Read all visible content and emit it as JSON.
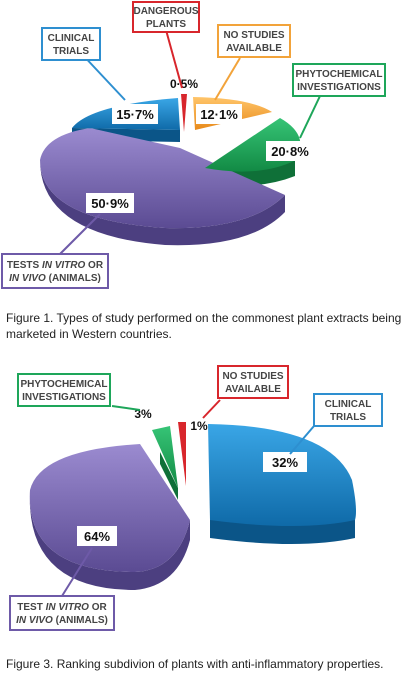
{
  "colors": {
    "clinical": "#1a86c8",
    "dangerous": "#d8262c",
    "nostudies": "#f2a33a",
    "phyto": "#1ea65a",
    "tests": "#7c6bb0",
    "callout_clinical": "#2e8fd0",
    "callout_dangerous": "#d8262c",
    "callout_nostudies": "#f2a33a",
    "callout_phyto": "#1ea65a",
    "callout_tests": "#6e5aa8"
  },
  "captions": {
    "figure1": "Figure 1.   Types of study performed on the commonest plant extracts being marketed in Western countries.",
    "figure3": "Figure 3.   Ranking subdivion of plants with anti-inflammatory properties."
  },
  "chart_data": [
    {
      "type": "pie",
      "title": "",
      "slices": [
        {
          "name": "DANGEROUS PLANTS",
          "value": 0.5,
          "label": "0·5%",
          "color_key": "dangerous"
        },
        {
          "name": "NO STUDIES AVAILABLE",
          "value": 12.1,
          "label": "12·1%",
          "color_key": "nostudies"
        },
        {
          "name": "PHYTOCHEMICAL INVESTIGATIONS",
          "value": 20.8,
          "label": "20·8%",
          "color_key": "phyto"
        },
        {
          "name": "TESTS IN VITRO OR IN VIVO (ANIMALS)",
          "value": 50.9,
          "label": "50·9%",
          "color_key": "tests"
        },
        {
          "name": "CLINICAL TRIALS",
          "value": 15.7,
          "label": "15·7%",
          "color_key": "clinical"
        }
      ],
      "callouts": {
        "dangerous": [
          "DANGEROUS",
          "PLANTS"
        ],
        "clinical": [
          "CLINICAL",
          "TRIALS"
        ],
        "nostudies": [
          "NO STUDIES",
          "AVAILABLE"
        ],
        "phyto": [
          "PHYTOCHEMICAL",
          "INVESTIGATIONS"
        ],
        "tests_line1": [
          "TESTS ",
          "IN VITRO",
          " OR"
        ],
        "tests_line2": [
          "IN VIVO",
          " (ANIMALS)"
        ]
      }
    },
    {
      "type": "pie",
      "title": "",
      "slices": [
        {
          "name": "NO STUDIES AVAILABLE",
          "value": 1,
          "label": "1%",
          "color_key": "dangerous"
        },
        {
          "name": "CLINICAL TRIALS",
          "value": 32,
          "label": "32%",
          "color_key": "clinical"
        },
        {
          "name": "TEST IN VITRO OR IN VIVO (ANIMALS)",
          "value": 64,
          "label": "64%",
          "color_key": "tests"
        },
        {
          "name": "PHYTOCHEMICAL INVESTIGATIONS",
          "value": 3,
          "label": "3%",
          "color_key": "phyto"
        }
      ],
      "callouts": {
        "phyto": [
          "PHYTOCHEMICAL",
          "INVESTIGATIONS"
        ],
        "nostudies": [
          "NO STUDIES",
          "AVAILABLE"
        ],
        "clinical": [
          "CLINICAL",
          "TRIALS"
        ],
        "tests_line1": [
          "TEST ",
          "IN VITRO",
          " OR"
        ],
        "tests_line2": [
          "IN VIVO",
          " (ANIMALS)"
        ]
      }
    }
  ]
}
